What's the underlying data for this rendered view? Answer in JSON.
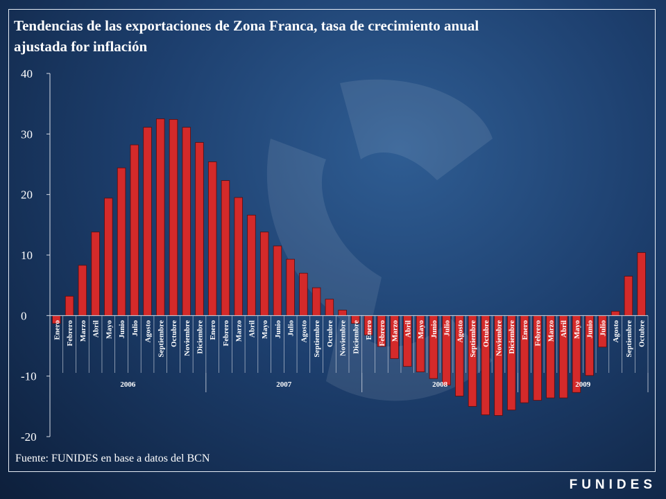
{
  "title": "Tendencias de las exportaciones de Zona Franca, tasa de crecimiento anual ajustada for inflación",
  "source": "Fuente: FUNIDES en base a datos del BCN",
  "brand": "FUNIDES",
  "colors": {
    "bar": "#d42a2a",
    "bar_edge": "#5a0b0b",
    "text": "#ffffff",
    "axis": "#d8dde6"
  },
  "chart_data": {
    "type": "bar",
    "title": "Tendencias de las exportaciones de Zona Franca, tasa de crecimiento anual ajustada for inflación",
    "xlabel": "",
    "ylabel": "",
    "ylim": [
      -20,
      40
    ],
    "yticks": [
      "40",
      "30",
      "20",
      "10",
      "0",
      "-10",
      "-20"
    ],
    "grid": false,
    "categories": [
      "Enero",
      "Febrero",
      "Marzo",
      "Abril",
      "Mayo",
      "Junio",
      "Julio",
      "Agosto",
      "Septiembre",
      "Octubre",
      "Noviembre",
      "Diciembre",
      "Enero",
      "Febrero",
      "Marzo",
      "Abril",
      "Mayo",
      "Junio",
      "Julio",
      "Agosto",
      "Septiembre",
      "Octubre",
      "Noviembre",
      "Diciembre",
      "Enero",
      "Febrero",
      "Marzo",
      "Abril",
      "Mayo",
      "Junio",
      "Julio",
      "Agosto",
      "Septiembre",
      "Octubre",
      "Noviembre",
      "Diciembre",
      "Enero",
      "Febrero",
      "Marzo",
      "Abril",
      "Mayo",
      "Junio",
      "Julio",
      "Agosto",
      "Septiembre",
      "Octubre"
    ],
    "years": [
      {
        "label": "2006",
        "months": 12
      },
      {
        "label": "2007",
        "months": 12
      },
      {
        "label": "2008",
        "months": 12
      },
      {
        "label": "2009",
        "months": 10
      }
    ],
    "values": [
      -1.3,
      3.2,
      8.3,
      13.8,
      19.4,
      24.4,
      28.2,
      31.1,
      32.5,
      32.4,
      31.1,
      28.6,
      25.4,
      22.3,
      19.5,
      16.6,
      13.8,
      11.5,
      9.3,
      7.0,
      4.6,
      2.7,
      0.9,
      -1.3,
      -3.2,
      -5.1,
      -7.1,
      -8.4,
      -9.3,
      -10.4,
      -11.5,
      -13.3,
      -15.0,
      -16.4,
      -16.5,
      -15.6,
      -14.4,
      -14.0,
      -13.6,
      -13.6,
      -12.7,
      -9.9,
      -5.2,
      0.7,
      6.5,
      10.4
    ]
  }
}
